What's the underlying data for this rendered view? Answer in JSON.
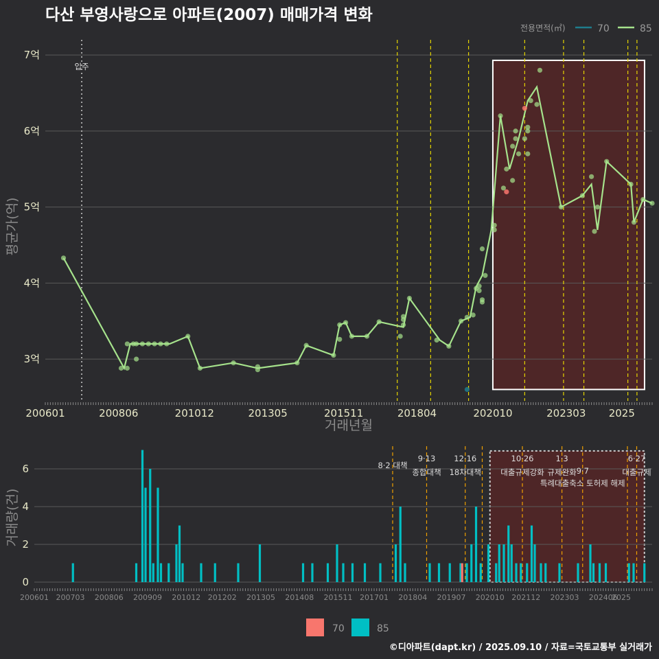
{
  "title": "다산 부영사랑으로 아파트(2007) 매매가격 변화",
  "credit": "©디아파트(dapt.kr) / 2025.09.10 / 자료=국토교통부 실거래가",
  "colors": {
    "bg": "#2b2b2e",
    "s70": "#1f7d8c",
    "s85": "#a6e38c",
    "bar70": "#f8766d",
    "bar85": "#00bfc4",
    "policy": "#e6d600",
    "highlight": "#6b2222"
  },
  "chart_data": [
    {
      "type": "line",
      "xlabel": "거래년월",
      "ylabel": "평균가(억)",
      "x_ticks": [
        "200601",
        "200806",
        "201012",
        "201305",
        "201511",
        "201804",
        "202010",
        "202303",
        "2025"
      ],
      "y_ticks": [
        "3억",
        "4억",
        "5억",
        "6억",
        "7억"
      ],
      "ylim": [
        2.45,
        7.2
      ],
      "legend": {
        "title": "전용면적(㎡)",
        "position": "top-right",
        "entries": [
          "70",
          "85"
        ]
      },
      "annotations": [
        {
          "label": "입주",
          "x": 2007.2
        }
      ],
      "policy_lines_x": [
        2017.6,
        2018.7,
        2019.95,
        2021.8,
        2023.08,
        2023.75,
        2025.2,
        2025.5
      ],
      "highlight_range": [
        2020.75,
        2025.75
      ],
      "series": [
        {
          "name": "70",
          "points": [
            [
              2019.9,
              2.6
            ],
            [
              2021.2,
              5.2
            ],
            [
              2021.8,
              6.3
            ]
          ]
        },
        {
          "name": "85",
          "line": [
            [
              2006.6,
              4.33
            ],
            [
              2008.6,
              2.88
            ],
            [
              2008.8,
              3.2
            ],
            [
              2009.2,
              3.2
            ],
            [
              2009.7,
              3.2
            ],
            [
              2010.1,
              3.2
            ],
            [
              2010.7,
              3.3
            ],
            [
              2011.1,
              2.88
            ],
            [
              2012.2,
              2.95
            ],
            [
              2013.0,
              2.88
            ],
            [
              2014.3,
              2.95
            ],
            [
              2014.6,
              3.18
            ],
            [
              2015.5,
              3.05
            ],
            [
              2015.7,
              3.45
            ],
            [
              2015.9,
              3.48
            ],
            [
              2016.1,
              3.3
            ],
            [
              2016.6,
              3.3
            ],
            [
              2017.0,
              3.49
            ],
            [
              2017.8,
              3.42
            ],
            [
              2018.0,
              3.8
            ],
            [
              2019.0,
              3.25
            ],
            [
              2019.3,
              3.17
            ],
            [
              2019.7,
              3.5
            ],
            [
              2020.0,
              3.55
            ],
            [
              2020.2,
              3.95
            ],
            [
              2020.4,
              4.1
            ],
            [
              2020.7,
              4.7
            ],
            [
              2021.0,
              6.2
            ],
            [
              2021.3,
              5.5
            ],
            [
              2021.6,
              5.9
            ],
            [
              2021.9,
              6.4
            ],
            [
              2022.2,
              6.58
            ],
            [
              2023.0,
              5.0
            ],
            [
              2023.7,
              5.15
            ],
            [
              2024.0,
              5.3
            ],
            [
              2024.2,
              4.7
            ],
            [
              2024.5,
              5.6
            ],
            [
              2025.3,
              5.3
            ],
            [
              2025.4,
              4.8
            ],
            [
              2025.7,
              5.1
            ],
            [
              2026.0,
              5.05
            ]
          ],
          "points": [
            [
              2006.6,
              4.33
            ],
            [
              2008.5,
              2.88
            ],
            [
              2008.7,
              2.88
            ],
            [
              2008.7,
              3.2
            ],
            [
              2008.9,
              3.2
            ],
            [
              2009.0,
              3.0
            ],
            [
              2009.0,
              3.2
            ],
            [
              2009.2,
              3.2
            ],
            [
              2009.4,
              3.2
            ],
            [
              2009.6,
              3.2
            ],
            [
              2009.8,
              3.2
            ],
            [
              2010.0,
              3.2
            ],
            [
              2010.7,
              3.3
            ],
            [
              2011.1,
              2.88
            ],
            [
              2012.2,
              2.95
            ],
            [
              2013.0,
              2.9
            ],
            [
              2013.0,
              2.86
            ],
            [
              2014.3,
              2.95
            ],
            [
              2014.6,
              3.18
            ],
            [
              2015.5,
              3.05
            ],
            [
              2015.7,
              3.26
            ],
            [
              2015.7,
              3.45
            ],
            [
              2015.9,
              3.48
            ],
            [
              2016.1,
              3.3
            ],
            [
              2016.6,
              3.3
            ],
            [
              2017.0,
              3.49
            ],
            [
              2017.7,
              3.3
            ],
            [
              2017.8,
              3.45
            ],
            [
              2017.8,
              3.52
            ],
            [
              2017.8,
              3.56
            ],
            [
              2018.0,
              3.8
            ],
            [
              2018.9,
              3.25
            ],
            [
              2019.3,
              3.17
            ],
            [
              2019.7,
              3.5
            ],
            [
              2019.9,
              3.55
            ],
            [
              2020.1,
              3.58
            ],
            [
              2020.2,
              3.93
            ],
            [
              2020.3,
              3.96
            ],
            [
              2020.3,
              3.9
            ],
            [
              2020.4,
              3.78
            ],
            [
              2020.4,
              3.75
            ],
            [
              2020.4,
              4.45
            ],
            [
              2020.5,
              4.1
            ],
            [
              2020.8,
              4.7
            ],
            [
              2020.8,
              4.76
            ],
            [
              2021.0,
              6.2
            ],
            [
              2021.1,
              5.25
            ],
            [
              2021.2,
              5.5
            ],
            [
              2021.4,
              5.35
            ],
            [
              2021.4,
              5.8
            ],
            [
              2021.5,
              5.9
            ],
            [
              2021.5,
              6.0
            ],
            [
              2021.6,
              5.7
            ],
            [
              2021.8,
              5.9
            ],
            [
              2021.9,
              6.0
            ],
            [
              2021.9,
              6.05
            ],
            [
              2021.9,
              5.7
            ],
            [
              2022.0,
              6.4
            ],
            [
              2022.2,
              6.35
            ],
            [
              2022.3,
              6.8
            ],
            [
              2023.0,
              5.0
            ],
            [
              2023.7,
              5.15
            ],
            [
              2024.0,
              5.4
            ],
            [
              2024.1,
              4.68
            ],
            [
              2024.2,
              5.0
            ],
            [
              2024.5,
              5.6
            ],
            [
              2025.3,
              5.3
            ],
            [
              2025.4,
              4.8
            ],
            [
              2025.7,
              5.1
            ],
            [
              2026.0,
              5.05
            ]
          ]
        }
      ]
    },
    {
      "type": "bar",
      "ylabel": "거래량(건)",
      "x_ticks": [
        "200601",
        "200703",
        "200806",
        "200909",
        "201012",
        "201202",
        "201305",
        "201408",
        "201511",
        "201701",
        "201804",
        "201907",
        "202010",
        "202112",
        "202303",
        "202406",
        "2025"
      ],
      "y_ticks": [
        "0",
        "2",
        "4",
        "6"
      ],
      "ylim": [
        0,
        7.2
      ],
      "legend": {
        "position": "bottom",
        "entries": [
          "70",
          "85"
        ]
      },
      "highlight_range": [
        2020.75,
        2025.75
      ],
      "policy_lines": [
        {
          "x": 2017.6,
          "label1": "8·2 대책",
          "label2": ""
        },
        {
          "x": 2018.7,
          "label1": "9·13",
          "label2": "종합대책"
        },
        {
          "x": 2019.95,
          "label1": "12·16",
          "label2": "18차대책"
        },
        {
          "x": 2020.5,
          "label1": "",
          "label2": ""
        },
        {
          "x": 2021.8,
          "label1": "10·26",
          "label2": "대출규제강화"
        },
        {
          "x": 2023.08,
          "label1": "1·3",
          "label2": "규제완화"
        },
        {
          "x": 2023.75,
          "label1": "9·7",
          "label2": "특례대출축소 토허제 해제"
        },
        {
          "x": 2025.2,
          "label1": "",
          "label2": ""
        },
        {
          "x": 2025.5,
          "label1": "6·27",
          "label2": "대출규제"
        }
      ],
      "bars85": [
        [
          2007.25,
          1
        ],
        [
          2009.3,
          1
        ],
        [
          2009.5,
          7
        ],
        [
          2009.6,
          5
        ],
        [
          2009.75,
          6
        ],
        [
          2009.85,
          1
        ],
        [
          2010.0,
          5
        ],
        [
          2010.1,
          1
        ],
        [
          2010.35,
          1
        ],
        [
          2010.6,
          2
        ],
        [
          2010.7,
          3
        ],
        [
          2010.8,
          1
        ],
        [
          2011.4,
          1
        ],
        [
          2011.85,
          1
        ],
        [
          2012.6,
          1
        ],
        [
          2013.3,
          2
        ],
        [
          2014.7,
          1
        ],
        [
          2015.0,
          1
        ],
        [
          2015.5,
          1
        ],
        [
          2015.8,
          2
        ],
        [
          2016.0,
          1
        ],
        [
          2016.3,
          1
        ],
        [
          2016.7,
          1
        ],
        [
          2017.2,
          1
        ],
        [
          2017.7,
          2
        ],
        [
          2017.85,
          4
        ],
        [
          2018.0,
          1
        ],
        [
          2018.8,
          1
        ],
        [
          2019.1,
          1
        ],
        [
          2019.45,
          1
        ],
        [
          2019.8,
          1
        ],
        [
          2020.0,
          1
        ],
        [
          2020.15,
          2
        ],
        [
          2020.3,
          4
        ],
        [
          2020.45,
          1
        ],
        [
          2020.7,
          2
        ],
        [
          2020.95,
          1
        ],
        [
          2021.05,
          2
        ],
        [
          2021.2,
          2
        ],
        [
          2021.35,
          3
        ],
        [
          2021.45,
          2
        ],
        [
          2021.6,
          1
        ],
        [
          2021.75,
          1
        ],
        [
          2021.95,
          1
        ],
        [
          2022.1,
          3
        ],
        [
          2022.2,
          2
        ],
        [
          2022.4,
          1
        ],
        [
          2022.55,
          1
        ],
        [
          2023.0,
          1
        ],
        [
          2023.6,
          1
        ],
        [
          2024.0,
          2
        ],
        [
          2024.1,
          1
        ],
        [
          2024.3,
          1
        ],
        [
          2024.5,
          1
        ],
        [
          2025.25,
          1
        ],
        [
          2025.4,
          1
        ],
        [
          2025.75,
          1
        ]
      ],
      "bars70": [
        [
          2019.85,
          1
        ]
      ]
    }
  ]
}
